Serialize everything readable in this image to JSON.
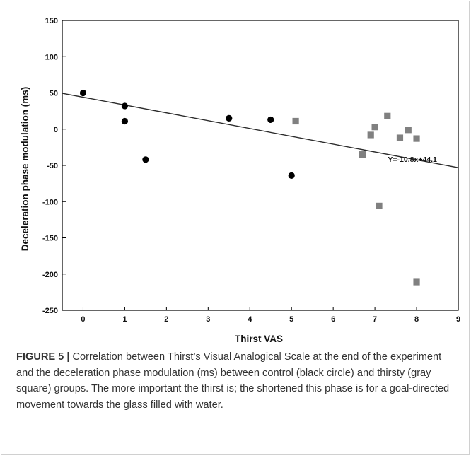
{
  "chart_data": {
    "type": "scatter",
    "title": "",
    "xlabel": "Thirst VAS",
    "ylabel": "Deceleration phase modulation (ms)",
    "xlim": [
      -0.5,
      9
    ],
    "ylim": [
      -250,
      150
    ],
    "x_ticks": [
      "0",
      "1",
      "2",
      "3",
      "4",
      "5",
      "6",
      "7",
      "8",
      "9"
    ],
    "y_ticks": [
      "150",
      "100",
      "50",
      "0",
      "-50",
      "-100",
      "-150",
      "-200",
      "-250"
    ],
    "series": [
      {
        "marker": "circle",
        "color": "#000000",
        "points": [
          {
            "x": 0,
            "y": 50
          },
          {
            "x": 1,
            "y": 32
          },
          {
            "x": 1,
            "y": 11
          },
          {
            "x": 1.5,
            "y": -42
          },
          {
            "x": 3.5,
            "y": 15
          },
          {
            "x": 4.5,
            "y": 13
          },
          {
            "x": 5,
            "y": -64
          }
        ]
      },
      {
        "marker": "square",
        "color": "#808080",
        "points": [
          {
            "x": 5.1,
            "y": 11
          },
          {
            "x": 6.7,
            "y": -35
          },
          {
            "x": 6.9,
            "y": -8
          },
          {
            "x": 7,
            "y": 3
          },
          {
            "x": 7.1,
            "y": -106
          },
          {
            "x": 7.3,
            "y": 18
          },
          {
            "x": 7.6,
            "y": -12
          },
          {
            "x": 7.8,
            "y": -1
          },
          {
            "x": 8,
            "y": -13
          },
          {
            "x": 8,
            "y": -211
          }
        ]
      }
    ],
    "regression": {
      "slope": -10.8,
      "intercept": 44.1,
      "label": "Y=-10.8x+44.1",
      "label_anchor": {
        "x": 7.9,
        "y": -45
      }
    },
    "grid": false,
    "legend": "none"
  },
  "caption": {
    "figure_label": "FIGURE 5 |",
    "text": "Correlation between Thirst’s Visual Analogical Scale at the end of the experiment and the deceleration phase modulation (ms) between control (black circle) and thirsty (gray square) groups. The more important the thirst is; the shortened this phase is for a goal-directed movement towards the glass filled with water."
  }
}
